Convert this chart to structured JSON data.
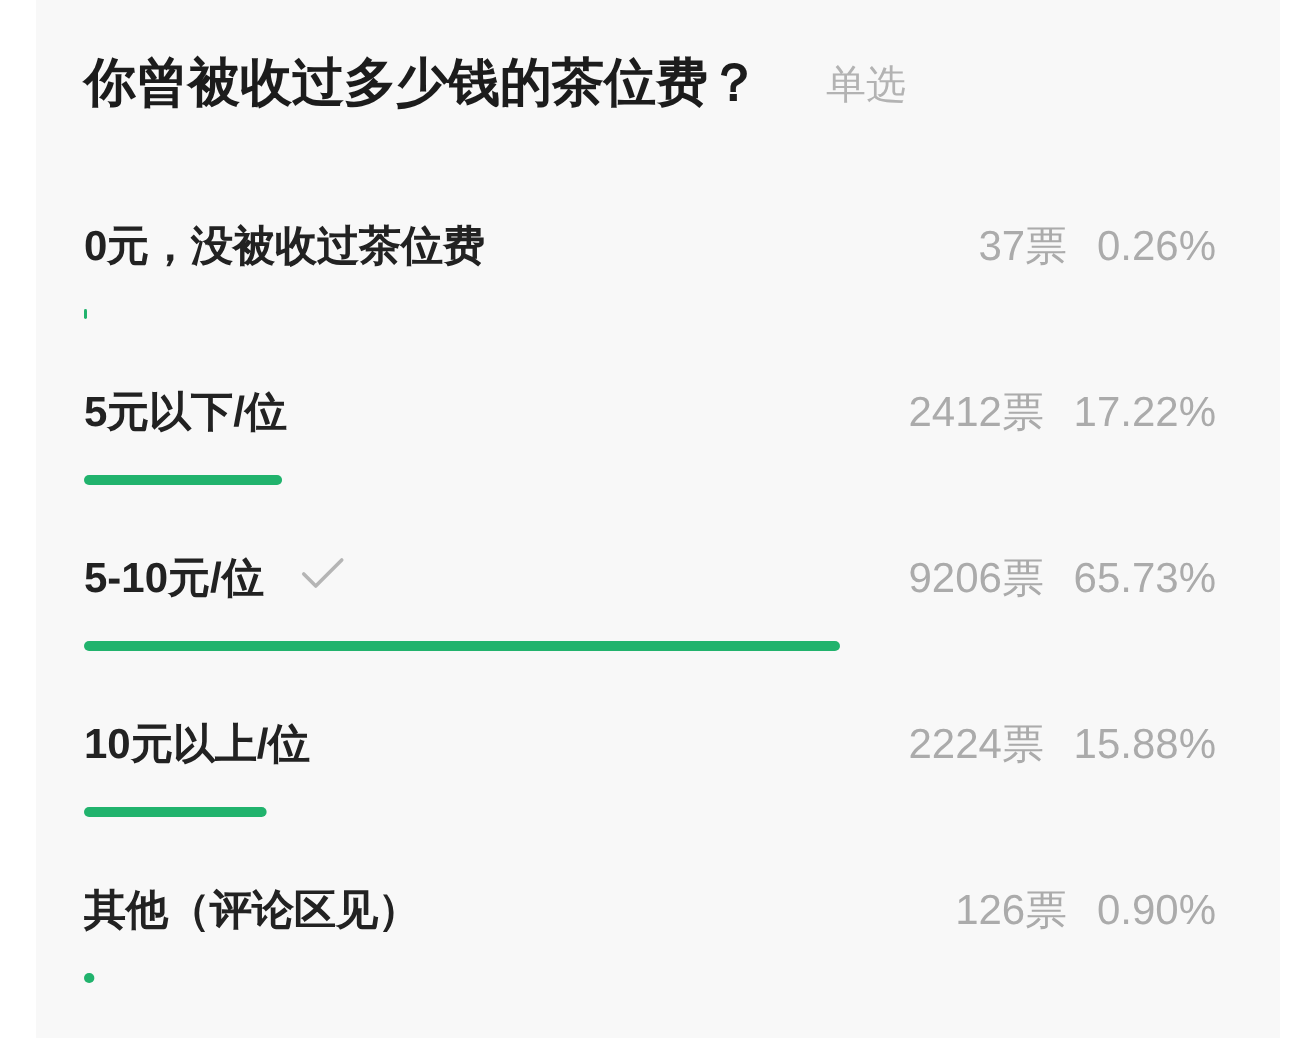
{
  "chart_data": {
    "type": "bar",
    "orientation": "horizontal",
    "title": "你曾被收过多少钱的茶位费？",
    "subtitle": "单选",
    "categories": [
      "0元，没被收过茶位费",
      "5元以下/位",
      "5-10元/位",
      "10元以上/位",
      "其他（评论区见）"
    ],
    "values": [
      0.26,
      17.22,
      65.73,
      15.88,
      0.9
    ],
    "value_labels": [
      "37票 0.26%",
      "2412票 17.22%",
      "9206票 65.73%",
      "2224票 15.88%",
      "126票 0.90%"
    ],
    "color": "#21b36d"
  }
}
